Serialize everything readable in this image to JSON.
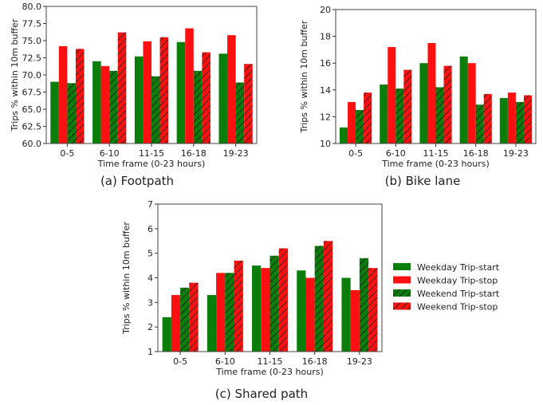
{
  "colors": {
    "green": "#0a7d0a",
    "red": "#ff1010",
    "hatch": "#1a1a1a",
    "frame": "#444444"
  },
  "legend": {
    "placement": "right",
    "entries": [
      {
        "label": "Weekday Trip-start",
        "color": "green",
        "hatched": false
      },
      {
        "label": "Weekday Trip-stop",
        "color": "red",
        "hatched": false
      },
      {
        "label": "Weekend Trip-start",
        "color": "green",
        "hatched": true
      },
      {
        "label": "Weekend Trip-stop",
        "color": "red",
        "hatched": true
      }
    ]
  },
  "chart_data": [
    {
      "type": "bar",
      "caption": "(a) Footpath",
      "xlabel": "Time frame (0-23 hours)",
      "ylabel": "Trips % within 10m buffer",
      "categories": [
        "0-5",
        "6-10",
        "11-15",
        "16-18",
        "19-23"
      ],
      "ylim": [
        60.0,
        80.0
      ],
      "yticks": [
        "60.0",
        "62.5",
        "65.0",
        "67.5",
        "70.0",
        "72.5",
        "75.0",
        "77.5",
        "80.0"
      ],
      "grid": false,
      "series": [
        {
          "name": "Weekday Trip-start",
          "values": [
            69.0,
            72.0,
            72.7,
            74.8,
            73.1
          ]
        },
        {
          "name": "Weekday Trip-stop",
          "values": [
            74.2,
            71.3,
            74.9,
            76.8,
            75.8
          ]
        },
        {
          "name": "Weekend Trip-start",
          "values": [
            68.8,
            70.6,
            69.8,
            70.6,
            68.9
          ]
        },
        {
          "name": "Weekend Trip-stop",
          "values": [
            73.8,
            76.2,
            75.5,
            73.3,
            71.6
          ]
        }
      ]
    },
    {
      "type": "bar",
      "caption": "(b) Bike lane",
      "xlabel": "Time frame (0-23 hours)",
      "ylabel": "Trips % within 10m buffer",
      "categories": [
        "0-5",
        "6-10",
        "11-15",
        "16-18",
        "19-23"
      ],
      "ylim": [
        10,
        20
      ],
      "yticks": [
        "10",
        "12",
        "14",
        "16",
        "18",
        "20"
      ],
      "grid": false,
      "series": [
        {
          "name": "Weekday Trip-start",
          "values": [
            11.2,
            14.4,
            16.0,
            16.5,
            13.4
          ]
        },
        {
          "name": "Weekday Trip-stop",
          "values": [
            13.1,
            17.2,
            17.5,
            16.0,
            13.8
          ]
        },
        {
          "name": "Weekend Trip-start",
          "values": [
            12.5,
            14.1,
            14.2,
            12.9,
            13.1
          ]
        },
        {
          "name": "Weekend Trip-stop",
          "values": [
            13.8,
            15.5,
            15.8,
            13.7,
            13.6
          ]
        }
      ]
    },
    {
      "type": "bar",
      "caption": "(c) Shared path",
      "xlabel": "Time frame (0-23 hours)",
      "ylabel": "Trips % within 10m buffer",
      "categories": [
        "0-5",
        "6-10",
        "11-15",
        "16-18",
        "19-23"
      ],
      "ylim": [
        1,
        7
      ],
      "yticks": [
        "1",
        "2",
        "3",
        "4",
        "5",
        "6",
        "7"
      ],
      "grid": false,
      "series": [
        {
          "name": "Weekday Trip-start",
          "values": [
            2.4,
            3.3,
            4.5,
            4.3,
            4.0
          ]
        },
        {
          "name": "Weekday Trip-stop",
          "values": [
            3.3,
            4.2,
            4.4,
            4.0,
            3.5
          ]
        },
        {
          "name": "Weekend Trip-start",
          "values": [
            3.6,
            4.2,
            4.9,
            5.3,
            4.8
          ]
        },
        {
          "name": "Weekend Trip-stop",
          "values": [
            3.8,
            4.7,
            5.2,
            5.5,
            4.4
          ]
        }
      ]
    }
  ]
}
